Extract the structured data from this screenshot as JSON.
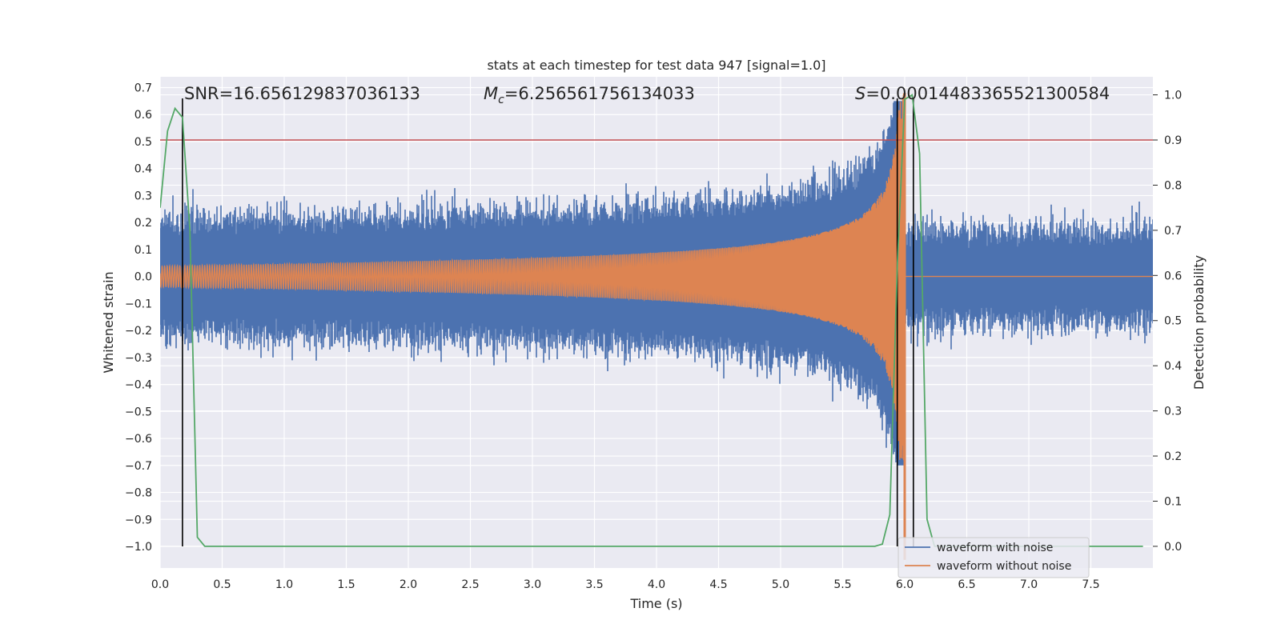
{
  "chart_data": {
    "type": "line",
    "title": "stats at each timestep for test data 947 [signal=1.0]",
    "xlabel": "Time (s)",
    "ylabel": "Whitened strain",
    "y2label": "Detection probability",
    "xlim": [
      0.0,
      8.0
    ],
    "ylim": [
      -1.08,
      0.74
    ],
    "y2lim": [
      -0.048,
      1.04
    ],
    "grid": true,
    "legend": {
      "position": "bottom-right"
    },
    "x_ticks": [
      "0.0",
      "0.5",
      "1.0",
      "1.5",
      "2.0",
      "2.5",
      "3.0",
      "3.5",
      "4.0",
      "4.5",
      "5.0",
      "5.5",
      "6.0",
      "6.5",
      "7.0",
      "7.5"
    ],
    "y_ticks": [
      "0.7",
      "0.6",
      "0.5",
      "0.4",
      "0.3",
      "0.2",
      "0.1",
      "0.0",
      "−0.1",
      "−0.2",
      "−0.3",
      "−0.4",
      "−0.5",
      "−0.6",
      "−0.7",
      "−0.8",
      "−0.9",
      "−1.0"
    ],
    "y2_ticks": [
      "1.0",
      "0.9",
      "0.8",
      "0.7",
      "0.6",
      "0.5",
      "0.4",
      "0.3",
      "0.2",
      "0.1",
      "0.0"
    ],
    "annotations": {
      "snr": "SNR=16.656129837036133",
      "mc_symbol": "M",
      "mc_sub": "c",
      "mc_value": "=6.256561756134033",
      "s_symbol": "S",
      "s_value": "=0.00014483365521300584"
    },
    "threshold": {
      "y2": 0.9,
      "color": "#c44e52"
    },
    "vertical_lines": {
      "x": [
        0.18,
        5.94,
        6.07
      ],
      "color": "#000000"
    },
    "series": [
      {
        "name": "waveform with noise",
        "color": "#4c72b0",
        "noise_amplitude": 0.2,
        "noise_peak": 0.65,
        "signal_end": 6.0
      },
      {
        "name": "waveform without noise",
        "color": "#dd8452",
        "amplitude_start": 0.045,
        "amplitude_peak": 0.68,
        "merger_time": 6.0
      },
      {
        "name": "detection probability",
        "color": "#55a868",
        "axis": "y2",
        "x": [
          0.0,
          0.06,
          0.12,
          0.18,
          0.24,
          0.3,
          0.36,
          5.76,
          5.82,
          5.88,
          5.94,
          6.0,
          6.06,
          6.12,
          6.18,
          6.24,
          6.3,
          7.92
        ],
        "values": [
          0.75,
          0.92,
          0.97,
          0.95,
          0.7,
          0.02,
          0.0,
          0.0,
          0.005,
          0.07,
          0.62,
          0.99,
          1.0,
          0.87,
          0.06,
          0.0,
          0.0,
          0.0
        ]
      }
    ]
  }
}
